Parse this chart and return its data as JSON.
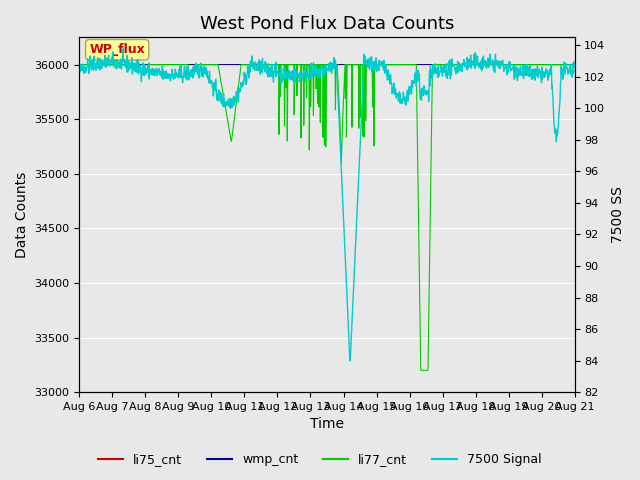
{
  "title": "West Pond Flux Data Counts",
  "xlabel": "Time",
  "ylabel_left": "Data Counts",
  "ylabel_right": "7500 SS",
  "ylim_left": [
    33000,
    36250
  ],
  "ylim_right": [
    82,
    104.5
  ],
  "yticks_left": [
    33000,
    33500,
    34000,
    34500,
    35000,
    35500,
    36000
  ],
  "yticks_right": [
    82,
    84,
    86,
    88,
    90,
    92,
    94,
    96,
    98,
    100,
    102,
    104
  ],
  "xtick_labels": [
    "Aug 6",
    "Aug 7",
    "Aug 8",
    "Aug 9",
    "Aug 10",
    "Aug 11",
    "Aug 12",
    "Aug 13",
    "Aug 14",
    "Aug 15",
    "Aug 16",
    "Aug 17",
    "Aug 18",
    "Aug 19",
    "Aug 20",
    "Aug 21"
  ],
  "background_color": "#e8e8e8",
  "plot_bg_color": "#e8e8e8",
  "annotation_text": "WP_flux",
  "annotation_color": "#cc0000",
  "annotation_bg": "#ffff99",
  "title_fontsize": 13,
  "axis_fontsize": 10,
  "tick_fontsize": 8
}
